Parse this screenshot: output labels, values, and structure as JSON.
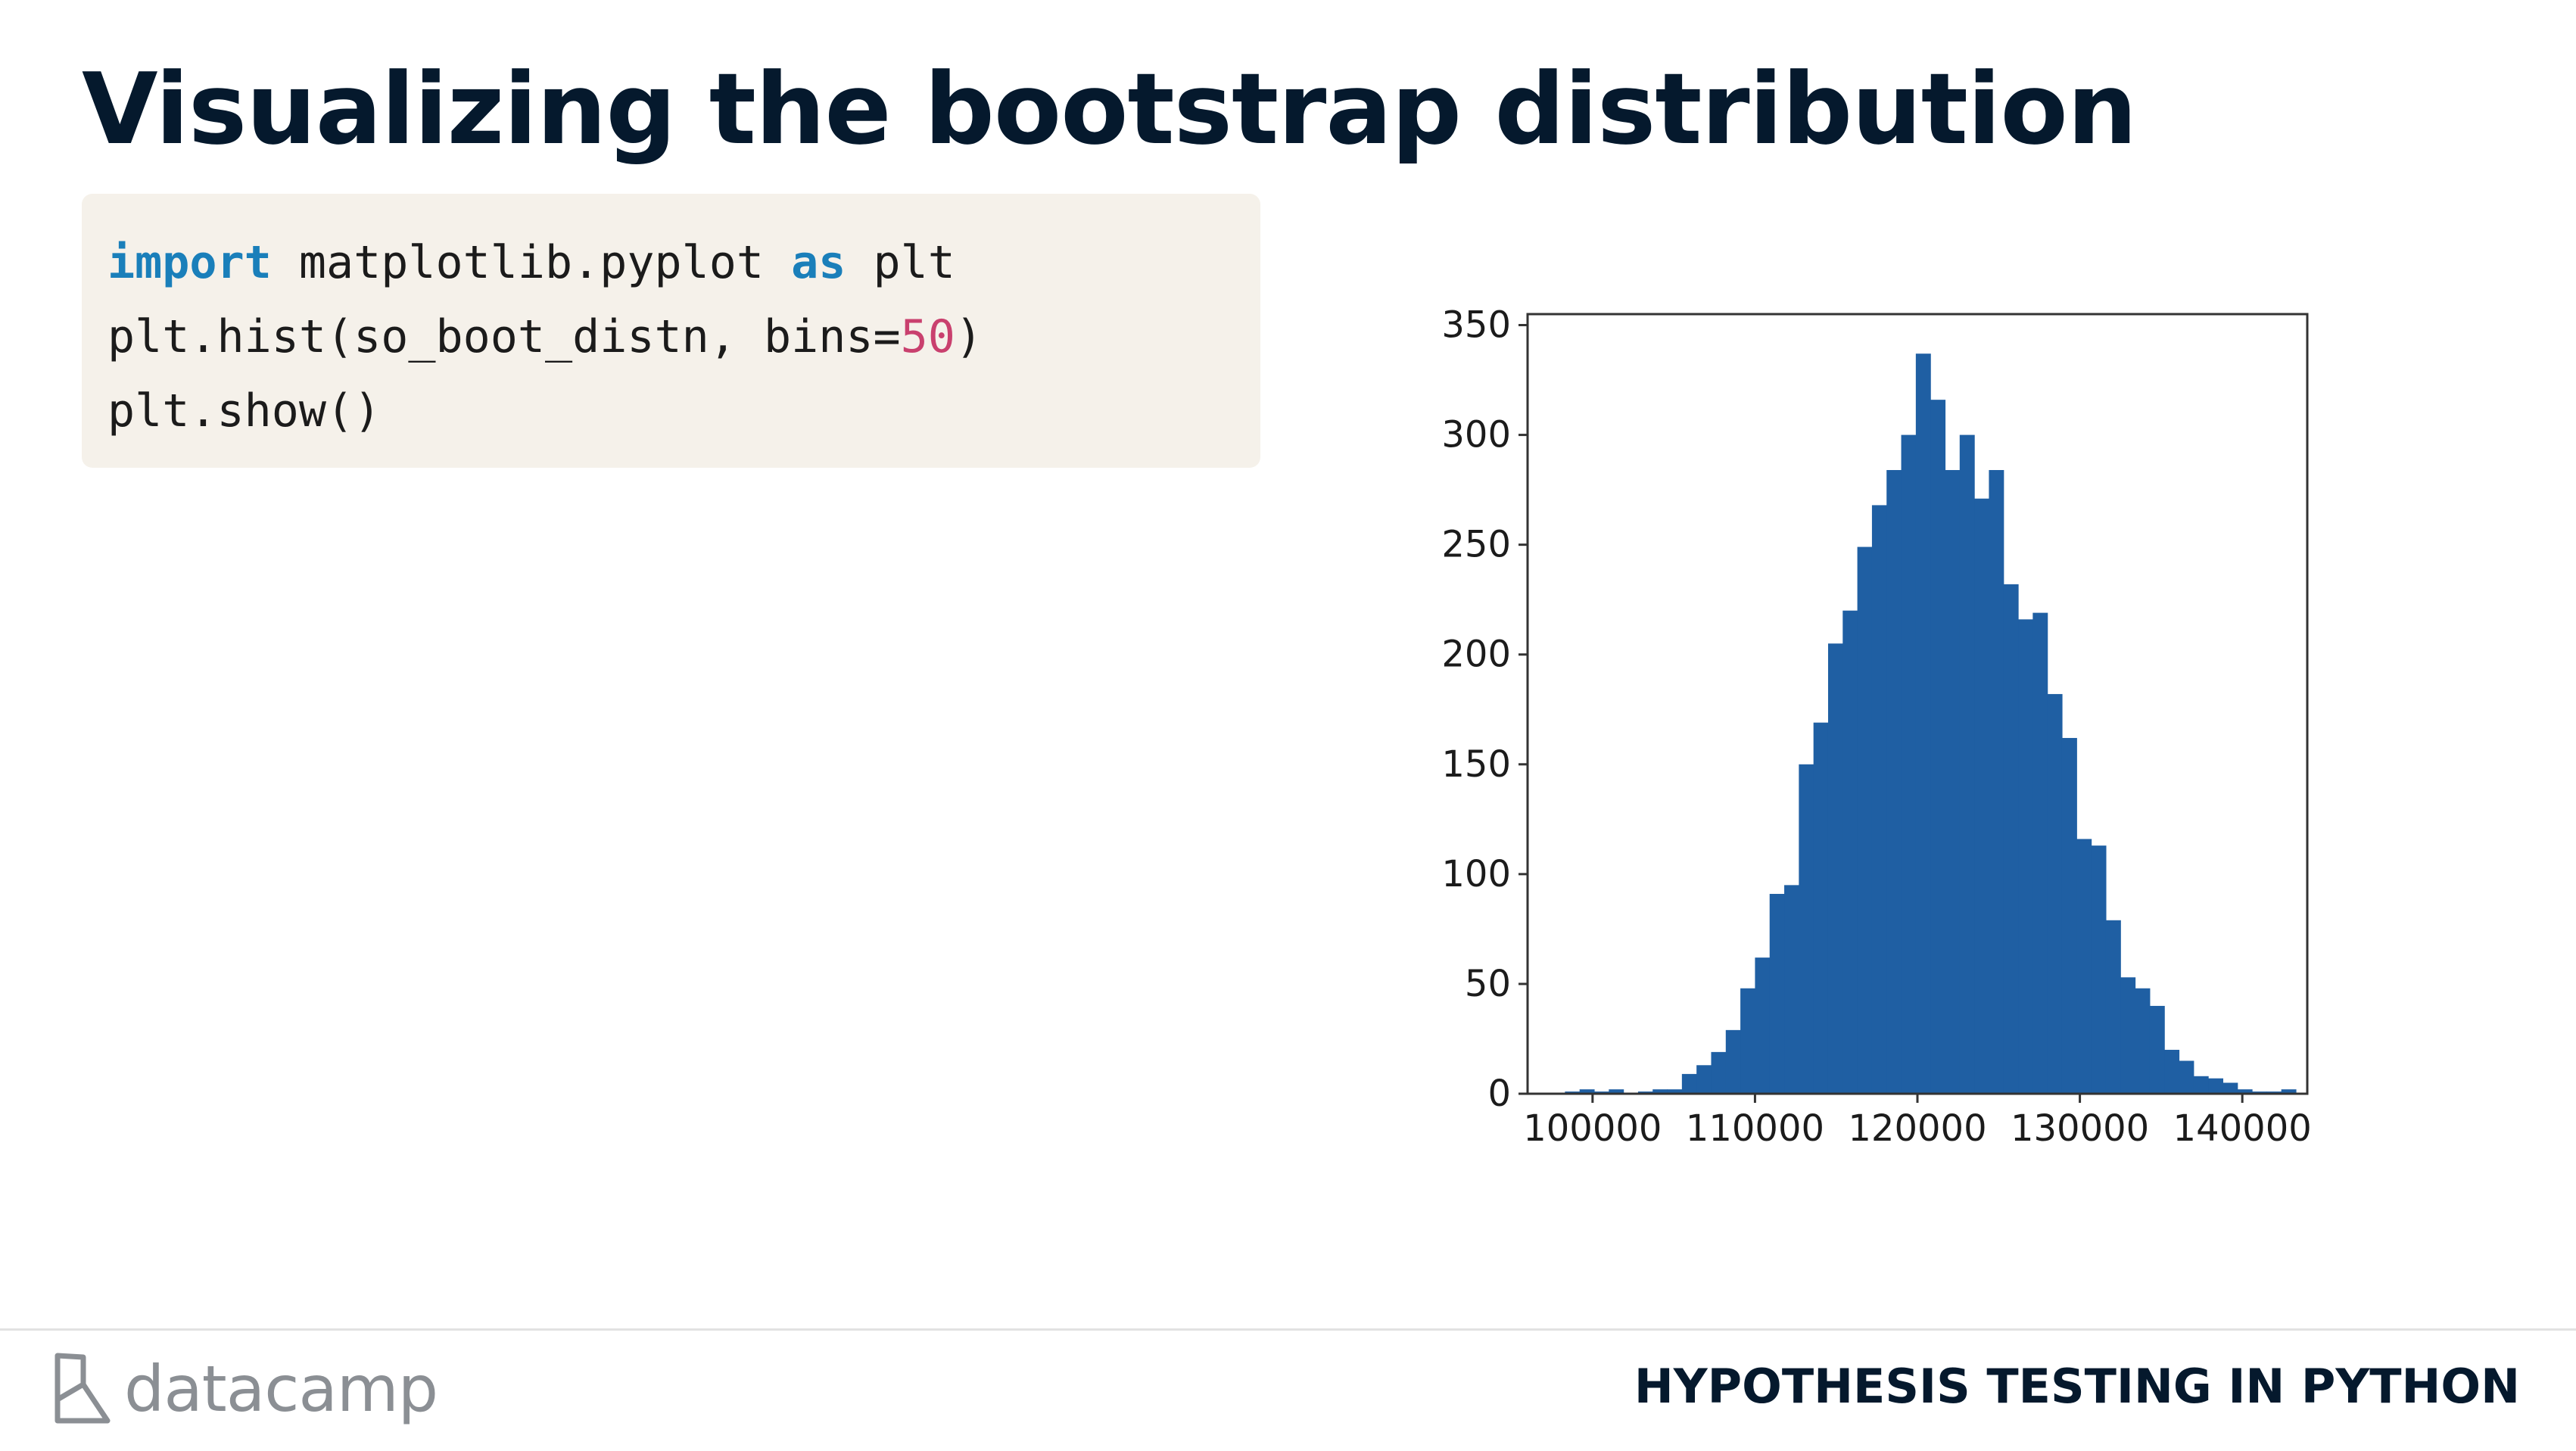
{
  "slide": {
    "title": "Visualizing the bootstrap distribution"
  },
  "code": {
    "line1": {
      "kw1": "import",
      "mid": " matplotlib.pyplot ",
      "kw2": "as",
      "end": " plt"
    },
    "line2": {
      "start": "plt.hist(so_boot_distn, bins=",
      "num": "50",
      "end": ")"
    },
    "line3": {
      "text": "plt.show()"
    },
    "colors": {
      "keyword": "#1a7fba",
      "number": "#c9406e",
      "background": "#f5f1ea"
    }
  },
  "chart_data": {
    "type": "bar",
    "title": "",
    "xlabel": "",
    "ylabel": "",
    "bin_width": 900,
    "bins_start": 98300,
    "values": [
      1,
      2,
      1,
      2,
      0,
      1,
      2,
      2,
      9,
      13,
      19,
      29,
      48,
      62,
      91,
      95,
      150,
      169,
      205,
      220,
      249,
      268,
      284,
      300,
      337,
      316,
      284,
      300,
      271,
      284,
      232,
      216,
      219,
      182,
      162,
      116,
      113,
      79,
      53,
      48,
      40,
      20,
      15,
      8,
      7,
      5,
      2,
      1,
      1,
      2
    ],
    "xlim": [
      96000,
      144000
    ],
    "ylim": [
      0,
      355
    ],
    "xticks": [
      "100000",
      "110000",
      "120000",
      "130000",
      "140000"
    ],
    "xtick_values": [
      100000,
      110000,
      120000,
      130000,
      140000
    ],
    "yticks": [
      "0",
      "50",
      "100",
      "150",
      "200",
      "250",
      "300",
      "350"
    ],
    "ytick_values": [
      0,
      50,
      100,
      150,
      200,
      250,
      300,
      350
    ],
    "bar_color": "#1f5fa3",
    "grid": false
  },
  "footer": {
    "brand": "datacamp",
    "course": "HYPOTHESIS TESTING IN PYTHON"
  }
}
